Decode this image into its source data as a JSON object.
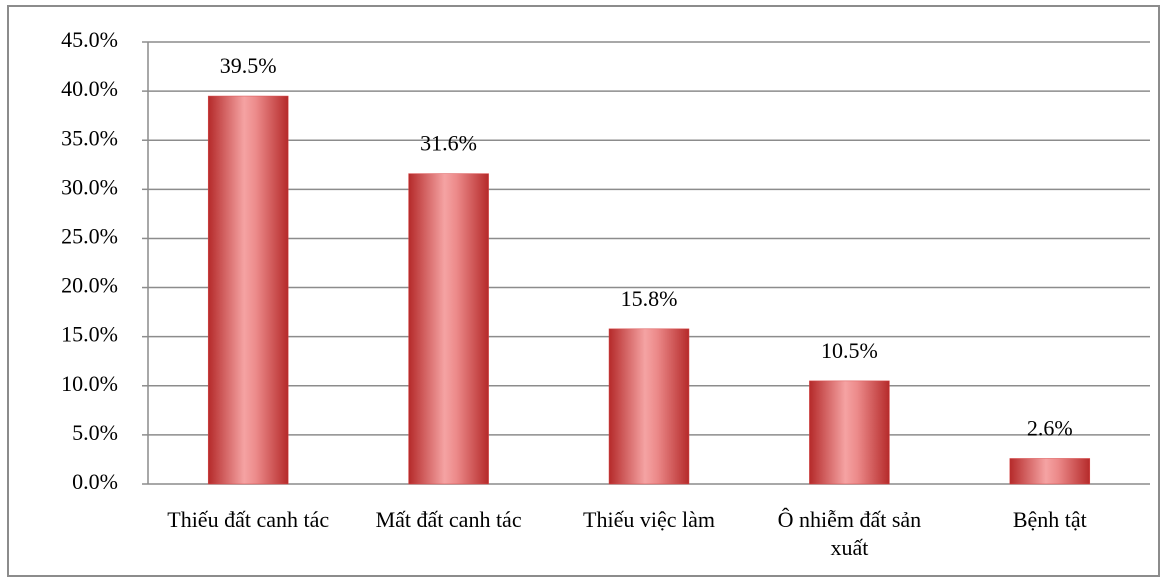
{
  "chart_data": {
    "type": "bar",
    "categories": [
      "Thiếu đất canh tác",
      "Mất đất canh tác",
      "Thiếu việc làm",
      "Ô nhiễm đất sản xuất",
      "Bệnh tật"
    ],
    "values": [
      39.5,
      31.6,
      15.8,
      10.5,
      2.6
    ],
    "value_labels": [
      "39.5%",
      "31.6%",
      "15.8%",
      "10.5%",
      "2.6%"
    ],
    "color": "#d94a4a",
    "ylim": [
      0,
      45
    ],
    "yticks": [
      {
        "value": 0,
        "label": "0.0%"
      },
      {
        "value": 5,
        "label": "5.0%"
      },
      {
        "value": 10,
        "label": "10.0%"
      },
      {
        "value": 15,
        "label": "15.0%"
      },
      {
        "value": 20,
        "label": "20.0%"
      },
      {
        "value": 25,
        "label": "25.0%"
      },
      {
        "value": 30,
        "label": "30.0%"
      },
      {
        "value": 35,
        "label": "35.0%"
      },
      {
        "value": 40,
        "label": "40.0%"
      },
      {
        "value": 45,
        "label": "45.0%"
      }
    ],
    "grid": true
  }
}
